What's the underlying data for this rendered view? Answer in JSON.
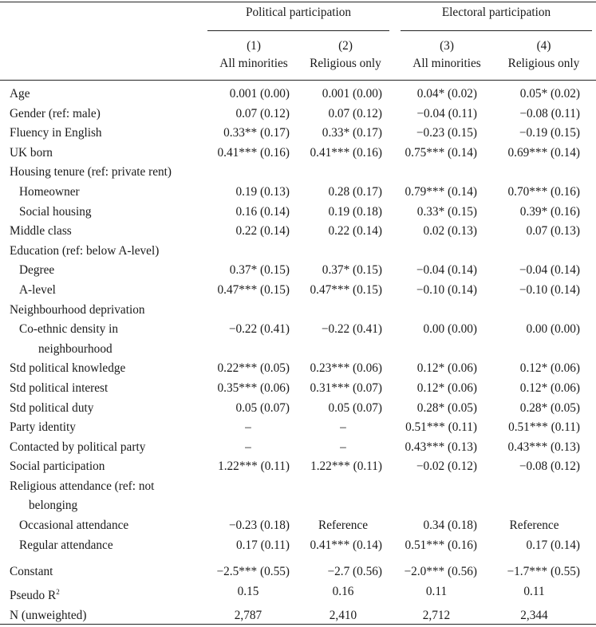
{
  "header": {
    "groups": [
      "Political participation",
      "Electoral participation"
    ],
    "columns": [
      {
        "num": "(1)",
        "label": "All minorities"
      },
      {
        "num": "(2)",
        "label": "Religious only"
      },
      {
        "num": "(3)",
        "label": "All minorities"
      },
      {
        "num": "(4)",
        "label": "Religious only"
      }
    ]
  },
  "rows": [
    {
      "label": "Age",
      "values": [
        "0.001 (0.00)",
        "0.001 (0.00)",
        "0.04* (0.02)",
        "0.05* (0.02)"
      ]
    },
    {
      "label": "Gender (ref: male)",
      "values": [
        "0.07 (0.12)",
        "0.07 (0.12)",
        "−0.04 (0.11)",
        "−0.08 (0.11)"
      ]
    },
    {
      "label": "Fluency in English",
      "values": [
        "0.33** (0.17)",
        "0.33* (0.17)",
        "−0.23 (0.15)",
        "−0.19 (0.15)"
      ]
    },
    {
      "label": "UK born",
      "values": [
        "0.41*** (0.16)",
        "0.41*** (0.16)",
        "0.75*** (0.14)",
        "0.69*** (0.14)"
      ]
    },
    {
      "label": "Housing tenure (ref: private rent)",
      "values": []
    },
    {
      "label": "Homeowner",
      "indent": true,
      "values": [
        "0.19 (0.13)",
        "0.28 (0.17)",
        "0.79*** (0.14)",
        "0.70*** (0.16)"
      ]
    },
    {
      "label": "Social housing",
      "indent": true,
      "values": [
        "0.16 (0.14)",
        "0.19 (0.18)",
        "0.33* (0.15)",
        "0.39* (0.16)"
      ]
    },
    {
      "label": "Middle class",
      "values": [
        "0.22 (0.14)",
        "0.22 (0.14)",
        "0.02 (0.13)",
        "0.07 (0.13)"
      ]
    },
    {
      "label": "Education (ref: below A-level)",
      "values": []
    },
    {
      "label": "Degree",
      "indent": true,
      "values": [
        "0.37* (0.15)",
        "0.37* (0.15)",
        "−0.04 (0.14)",
        "−0.04 (0.14)"
      ]
    },
    {
      "label": "A-level",
      "indent": true,
      "values": [
        "0.47*** (0.15)",
        "0.47*** (0.15)",
        "−0.10 (0.14)",
        "−0.10 (0.14)"
      ]
    },
    {
      "label": "Neighbourhood deprivation",
      "values": []
    },
    {
      "label": "Co-ethnic density in",
      "cont": "neighbourhood",
      "indent": true,
      "values": [
        "−0.22 (0.41)",
        "−0.22 (0.41)",
        "0.00 (0.00)",
        "0.00 (0.00)"
      ]
    },
    {
      "label": "Std political knowledge",
      "values": [
        "0.22*** (0.05)",
        "0.23*** (0.06)",
        "0.12* (0.06)",
        "0.12* (0.06)"
      ]
    },
    {
      "label": "Std political interest",
      "values": [
        "0.35*** (0.06)",
        "0.31*** (0.07)",
        "0.12* (0.06)",
        "0.12* (0.06)"
      ]
    },
    {
      "label": "Std political duty",
      "values": [
        "0.05 (0.07)",
        "0.05 (0.07)",
        "0.28* (0.05)",
        "0.28* (0.05)"
      ]
    },
    {
      "label": "Party identity",
      "values": [
        "–",
        "–",
        "0.51*** (0.11)",
        "0.51*** (0.11)"
      ],
      "center": [
        true,
        true,
        false,
        false
      ]
    },
    {
      "label": "Contacted by political party",
      "values": [
        "–",
        "–",
        "0.43*** (0.13)",
        "0.43*** (0.13)"
      ],
      "center": [
        true,
        true,
        false,
        false
      ]
    },
    {
      "label": "Social participation",
      "values": [
        "1.22*** (0.11)",
        "1.22*** (0.11)",
        "−0.02 (0.12)",
        "−0.08 (0.12)"
      ]
    },
    {
      "label": "Religious attendance (ref: not",
      "cont": "belonging",
      "values": []
    },
    {
      "label": "Occasional attendance",
      "indent": true,
      "values": [
        "−0.23 (0.18)",
        "Reference",
        "0.34 (0.18)",
        "Reference"
      ],
      "center": [
        false,
        true,
        false,
        true
      ]
    },
    {
      "label": "Regular attendance",
      "indent": true,
      "values": [
        "0.17 (0.11)",
        "0.41*** (0.14)",
        "0.51*** (0.16)",
        "0.17 (0.14)"
      ]
    },
    {
      "gap": true
    },
    {
      "label": "Constant",
      "values": [
        "−2.5*** (0.55)",
        "−2.7 (0.56)",
        "−2.0*** (0.56)",
        "−1.7*** (0.55)"
      ]
    },
    {
      "label": "Pseudo R",
      "sup": "2",
      "values": [
        "0.15",
        "0.16",
        "0.11",
        "0.11"
      ],
      "center": [
        true,
        true,
        true,
        true
      ]
    },
    {
      "label": "N (unweighted)",
      "values": [
        "2,787",
        "2,410",
        "2,712",
        "2,344"
      ],
      "center": [
        true,
        true,
        true,
        true
      ]
    }
  ]
}
